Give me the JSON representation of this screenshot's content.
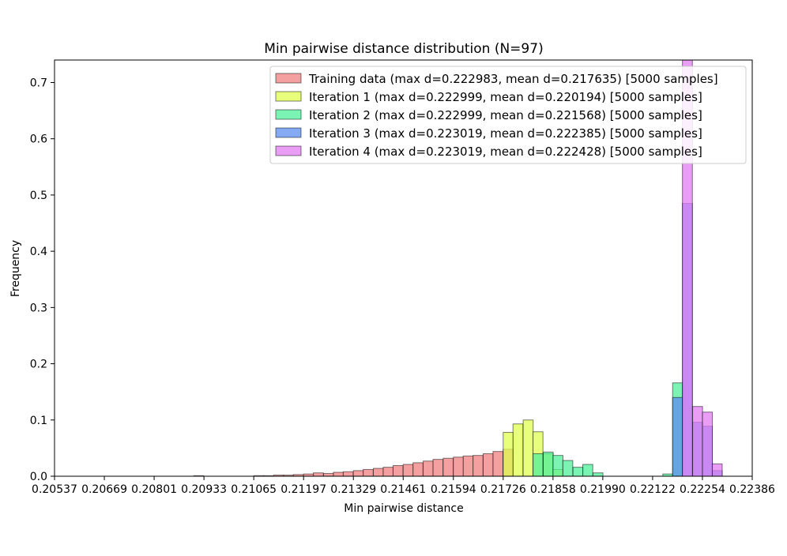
{
  "chart_data": {
    "type": "histogram",
    "title": "Min pairwise distance distribution (N=97)",
    "xlabel": "Min pairwise distance",
    "ylabel": "Frequency",
    "xlim": [
      0.20537,
      0.22386
    ],
    "ylim": [
      0,
      0.74
    ],
    "x_ticks": [
      "0.20537",
      "0.20669",
      "0.20801",
      "0.20933",
      "0.21065",
      "0.21197",
      "0.21329",
      "0.21461",
      "0.21594",
      "0.21726",
      "0.21858",
      "0.21990",
      "0.22122",
      "0.22254",
      "0.22386"
    ],
    "y_ticks": [
      "0.0",
      "0.1",
      "0.2",
      "0.3",
      "0.4",
      "0.5",
      "0.6",
      "0.7"
    ],
    "bin_width": 0.000264,
    "grid": false,
    "legend_position": "top-right",
    "series": [
      {
        "name": "Training data (max d=0.222983, mean d=0.217635) [5000 samples]",
        "color": "#f08080",
        "x": [
          0.20906,
          0.21065,
          0.21091,
          0.21118,
          0.21144,
          0.2117,
          0.21197,
          0.21223,
          0.2125,
          0.21276,
          0.21302,
          0.21329,
          0.21355,
          0.21382,
          0.21408,
          0.21434,
          0.21461,
          0.21487,
          0.21514,
          0.2154,
          0.21567,
          0.21594,
          0.2162,
          0.21646,
          0.21673,
          0.21699,
          0.21726
        ],
        "values": [
          0.001,
          0.001,
          0.001,
          0.002,
          0.002,
          0.003,
          0.004,
          0.006,
          0.005,
          0.007,
          0.008,
          0.01,
          0.012,
          0.014,
          0.016,
          0.019,
          0.021,
          0.024,
          0.027,
          0.03,
          0.032,
          0.034,
          0.036,
          0.037,
          0.04,
          0.044,
          0.048
        ]
      },
      {
        "name": "Iteration 1 (max d=0.222999, mean d=0.220194) [5000 samples]",
        "color": "#dfff4f",
        "x": [
          0.21726,
          0.21752,
          0.21779,
          0.21805,
          0.21832,
          0.21858
        ],
        "values": [
          0.078,
          0.093,
          0.1,
          0.079,
          0.04,
          0.012
        ]
      },
      {
        "name": "Iteration 2 (max d=0.222999, mean d=0.221568) [5000 samples]",
        "color": "#4fef9a",
        "x": [
          0.21805,
          0.21832,
          0.21858,
          0.21884,
          0.21911,
          0.21937,
          0.21964,
          0.22149,
          0.22175
        ],
        "values": [
          0.04,
          0.043,
          0.037,
          0.028,
          0.016,
          0.021,
          0.006,
          0.004,
          0.166
        ]
      },
      {
        "name": "Iteration 3 (max d=0.223019, mean d=0.222385) [5000 samples]",
        "color": "#5b8def",
        "x": [
          0.22175,
          0.22201,
          0.22228,
          0.22254,
          0.2228
        ],
        "values": [
          0.14,
          0.485,
          0.096,
          0.089,
          0.01
        ]
      },
      {
        "name": "Iteration 4 (max d=0.223019, mean d=0.222428) [5000 samples]",
        "color": "#e27cf2",
        "x": [
          0.22201,
          0.22228,
          0.22254,
          0.2228
        ],
        "values": [
          0.745,
          0.124,
          0.114,
          0.022
        ]
      }
    ]
  }
}
